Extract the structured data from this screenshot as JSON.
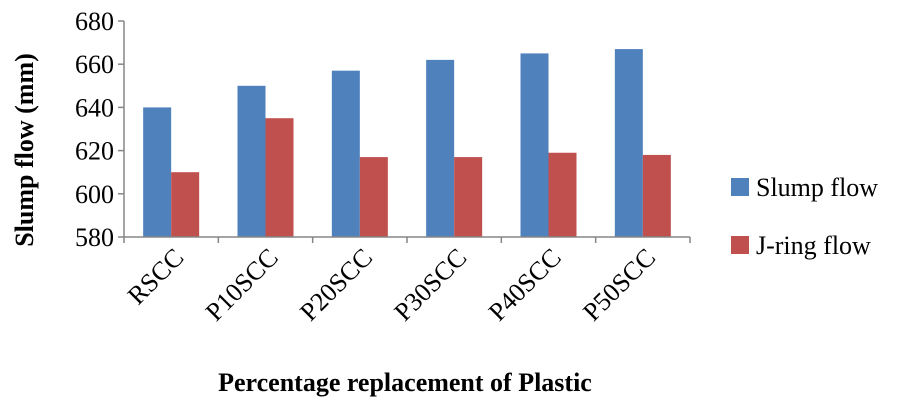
{
  "chart_data": {
    "type": "bar",
    "title": "",
    "xlabel": "Percentage replacement of Plastic",
    "ylabel": "Slump flow (mm)",
    "ylim": [
      580,
      680
    ],
    "yticks": [
      580,
      600,
      620,
      640,
      660,
      680
    ],
    "categories": [
      "RSCC",
      "P10SCC",
      "P20SCC",
      "P30SCC",
      "P40SCC",
      "P50SCC"
    ],
    "series": [
      {
        "name": "Slump flow",
        "color": "#4F81BD",
        "values": [
          640,
          650,
          657,
          662,
          665,
          667
        ]
      },
      {
        "name": "J-ring flow",
        "color": "#C0504D",
        "values": [
          610,
          635,
          617,
          617,
          619,
          618
        ]
      }
    ],
    "grid": false,
    "legend_position": "right"
  }
}
